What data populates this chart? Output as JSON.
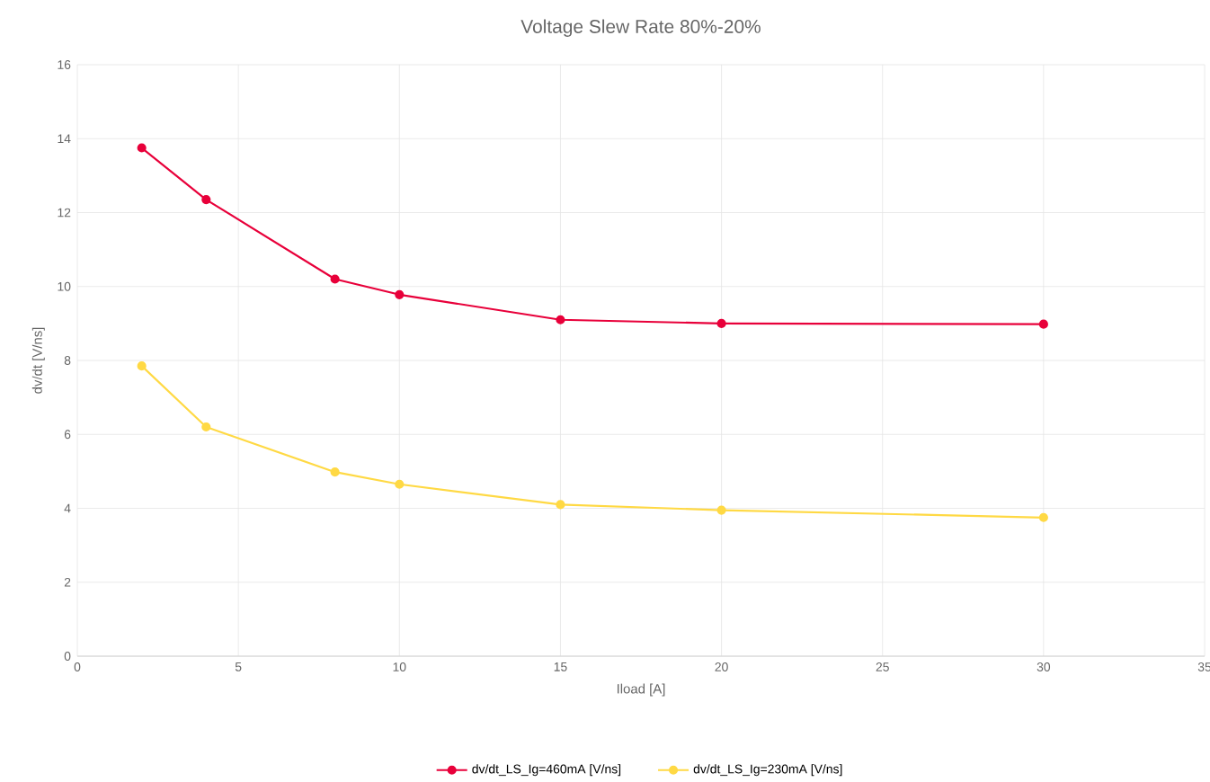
{
  "chart_data": {
    "type": "line",
    "title": "Voltage Slew Rate 80%-20%",
    "xlabel": "Iload [A]",
    "ylabel": "dv/dt [V/ns]",
    "x": [
      2,
      4,
      8,
      10,
      15,
      20,
      30
    ],
    "series": [
      {
        "name": "dv/dt_LS_Ig=460mA [V/ns]",
        "color": "#e8003a",
        "values": [
          13.75,
          12.35,
          10.2,
          9.78,
          9.1,
          9.0,
          8.98
        ]
      },
      {
        "name": "dv/dt_LS_Ig=230mA [V/ns]",
        "color": "#ffd944",
        "values": [
          7.85,
          6.2,
          4.98,
          4.65,
          4.1,
          3.95,
          3.75
        ]
      }
    ],
    "xlim": [
      0,
      35
    ],
    "ylim": [
      0,
      16
    ],
    "xticks": [
      0,
      5,
      10,
      15,
      20,
      25,
      30,
      35
    ],
    "yticks": [
      0,
      2,
      4,
      6,
      8,
      10,
      12,
      14,
      16
    ],
    "grid": true,
    "legend": "bottom",
    "marker": "circle",
    "line_style": "solid"
  }
}
